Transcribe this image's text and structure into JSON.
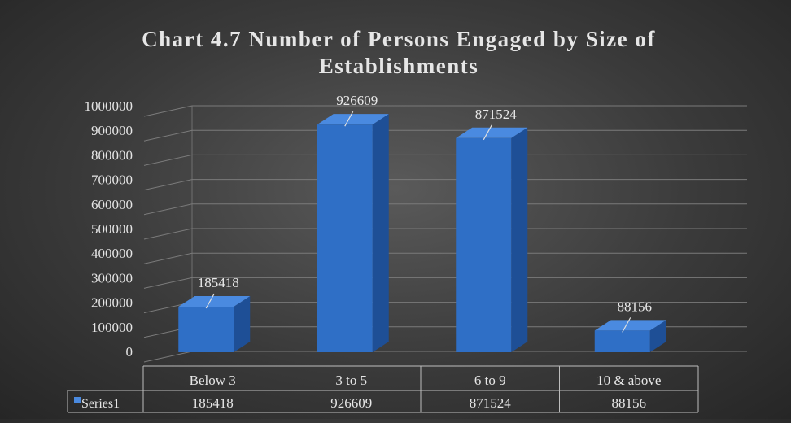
{
  "chart_data": {
    "type": "bar",
    "title_line1": "Chart 4.7 Number of Persons Engaged by Size of",
    "title_line2": "Establishments",
    "categories": [
      "Below 3",
      "3 to 5",
      "6 to 9",
      "10 & above"
    ],
    "series": [
      {
        "name": "Series1",
        "values": [
          185418,
          926609,
          871524,
          88156
        ]
      }
    ],
    "ylim": [
      0,
      1000000
    ],
    "yticks": [
      0,
      100000,
      200000,
      300000,
      400000,
      500000,
      600000,
      700000,
      800000,
      900000,
      1000000
    ],
    "grid": true,
    "legend": "data-table-bottom",
    "bar_color": "#2f6fc6",
    "bar_top_color": "#4a8ae0",
    "bar_side_color": "#1e4f96"
  }
}
